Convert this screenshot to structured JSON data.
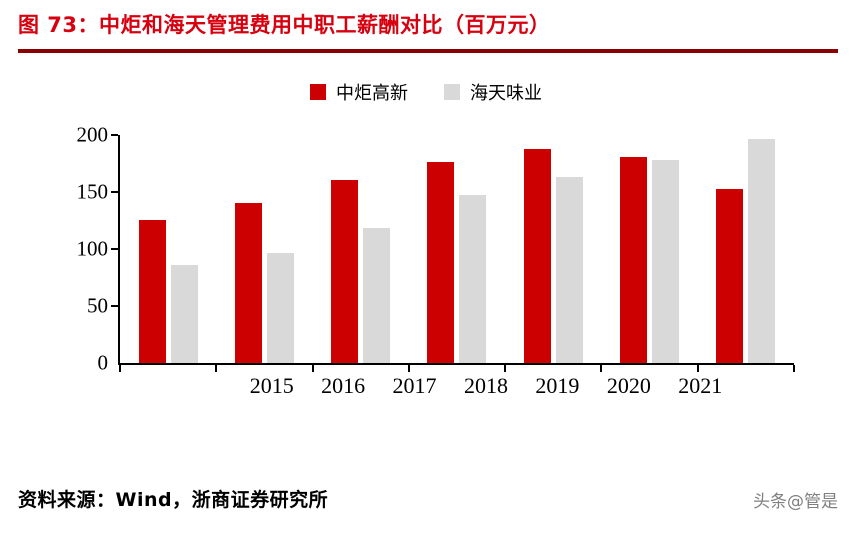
{
  "header": {
    "title": "图 73：中炬和海天管理费用中职工薪酬对比（百万元）"
  },
  "chart_data": {
    "type": "bar",
    "title": "中炬和海天管理费用中职工薪酬对比（百万元）",
    "categories": [
      "2015",
      "2016",
      "2017",
      "2018",
      "2019",
      "2020",
      "2021"
    ],
    "series": [
      {
        "name": "中炬高新",
        "color": "#cc0000",
        "values": [
          126,
          141,
          161,
          177,
          188,
          181,
          153
        ]
      },
      {
        "name": "海天味业",
        "color": "#d9d9d9",
        "values": [
          86,
          97,
          119,
          148,
          163,
          178,
          197
        ]
      }
    ],
    "xlabel": "",
    "ylabel": "",
    "ylim": [
      0,
      200
    ],
    "yticks": [
      0,
      50,
      100,
      150,
      200
    ],
    "grid": false,
    "legend_position": "top"
  },
  "footer": {
    "source": "资料来源：Wind，浙商证券研究所",
    "watermark": "头条@管是"
  }
}
